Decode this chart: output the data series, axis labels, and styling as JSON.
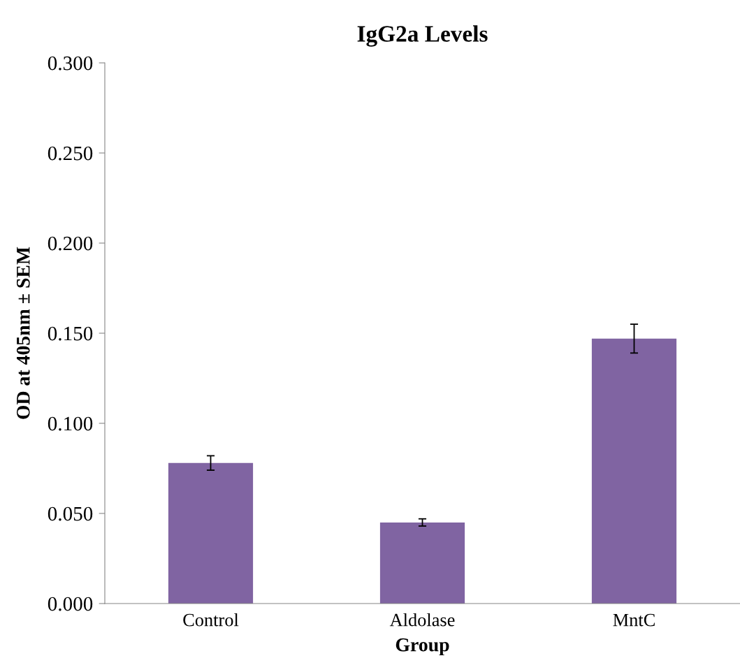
{
  "chart_data": {
    "type": "bar",
    "title": "IgG2a Levels",
    "xlabel": "Group",
    "ylabel": "OD at 405nm ± SEM",
    "categories": [
      "Control",
      "Aldolase",
      "MntC"
    ],
    "values": [
      0.078,
      0.045,
      0.147
    ],
    "errors": [
      0.004,
      0.002,
      0.008
    ],
    "color": "#8064a2",
    "ylim": [
      0,
      0.3
    ],
    "yticks": [
      {
        "value": 0,
        "label": "0.000"
      },
      {
        "value": 0.05,
        "label": "0.050"
      },
      {
        "value": 0.1,
        "label": "0.100"
      },
      {
        "value": 0.15,
        "label": "0.150"
      },
      {
        "value": 0.2,
        "label": "0.200"
      },
      {
        "value": 0.25,
        "label": "0.250"
      },
      {
        "value": 0.3,
        "label": "0.300"
      }
    ],
    "grid": false,
    "legend": false
  }
}
